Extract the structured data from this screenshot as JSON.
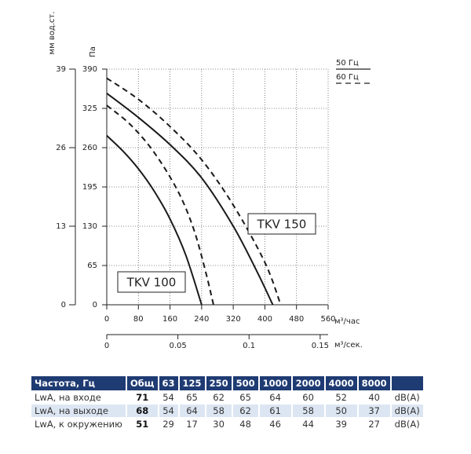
{
  "chart_data": {
    "type": "line",
    "y_label": "Па",
    "y2_label": "мм вод.ст.",
    "x_label": "м³/час",
    "x2_label": "м³/сек.",
    "xlim": [
      0,
      560
    ],
    "xticks": [
      0,
      80,
      160,
      240,
      320,
      400,
      480,
      560
    ],
    "ylim": [
      0,
      390
    ],
    "yticks": [
      0,
      65,
      130,
      195,
      260,
      325,
      390
    ],
    "y2lim": [
      0,
      39
    ],
    "y2ticks": [
      0,
      13,
      26,
      39
    ],
    "x2lim": [
      0,
      0.1556
    ],
    "x2ticks": [
      0,
      0.05,
      0.1,
      0.15
    ],
    "grid": true,
    "legend": [
      "50 Гц",
      "60 Гц"
    ],
    "annotations": [
      "TKV 100",
      "TKV 150"
    ],
    "series": [
      {
        "color": "#1a1a1a",
        "dashed": false,
        "x": [
          0,
          40,
          80,
          120,
          160,
          200,
          240
        ],
        "values": [
          280,
          255,
          225,
          188,
          142,
          82,
          0
        ]
      },
      {
        "color": "#1a1a1a",
        "dashed": true,
        "x": [
          0,
          60,
          120,
          180,
          220,
          250,
          270
        ],
        "values": [
          330,
          298,
          252,
          188,
          125,
          55,
          0
        ]
      },
      {
        "color": "#1a1a1a",
        "dashed": false,
        "x": [
          0,
          80,
          160,
          240,
          320,
          380,
          420
        ],
        "values": [
          350,
          310,
          265,
          210,
          130,
          55,
          0
        ]
      },
      {
        "color": "#1a1a1a",
        "dashed": true,
        "x": [
          0,
          80,
          160,
          240,
          320,
          400,
          440
        ],
        "values": [
          375,
          340,
          295,
          240,
          165,
          70,
          0
        ]
      }
    ]
  },
  "table": {
    "header": [
      "Частота, Гц",
      "Общ",
      "63",
      "125",
      "250",
      "500",
      "1000",
      "2000",
      "4000",
      "8000"
    ],
    "rows": [
      [
        "LwA, на входе",
        "71",
        "54",
        "65",
        "62",
        "65",
        "64",
        "60",
        "52",
        "40",
        "dB(A)"
      ],
      [
        "LwA, на выходе",
        "68",
        "54",
        "64",
        "58",
        "62",
        "61",
        "58",
        "50",
        "37",
        "dB(A)"
      ],
      [
        "LwA, к окружению",
        "51",
        "29",
        "17",
        "30",
        "48",
        "46",
        "44",
        "39",
        "27",
        "dB(A)"
      ]
    ]
  }
}
